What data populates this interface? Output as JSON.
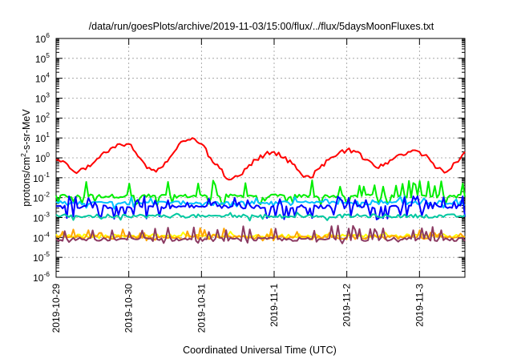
{
  "chart_data": {
    "type": "line",
    "title": "/data/run/goesPlots/archive/2019-11-03/15:00/flux/../flux/5daysMoonFluxes.txt",
    "xlabel": "Coordinated Universal Time (UTC)",
    "ylabel": {
      "before": "protons/cm",
      "sup": "2",
      "after": "-s-sr-MeV"
    },
    "yscale": "log",
    "ylim": [
      1e-06,
      1000000.0
    ],
    "xlim": [
      "2019-10-29T00:00",
      "2019-11-03T15:00"
    ],
    "grid": true,
    "y_ticks": [
      {
        "base": "10",
        "exp": "-6",
        "value": 1e-06
      },
      {
        "base": "10",
        "exp": "-5",
        "value": 1e-05
      },
      {
        "base": "10",
        "exp": "-4",
        "value": 0.0001
      },
      {
        "base": "10",
        "exp": "-3",
        "value": 0.001
      },
      {
        "base": "10",
        "exp": "-2",
        "value": 0.01
      },
      {
        "base": "10",
        "exp": "-1",
        "value": 0.1
      },
      {
        "base": "10",
        "exp": "0",
        "value": 1
      },
      {
        "base": "10",
        "exp": "1",
        "value": 10
      },
      {
        "base": "10",
        "exp": "2",
        "value": 100
      },
      {
        "base": "10",
        "exp": "3",
        "value": 1000
      },
      {
        "base": "10",
        "exp": "4",
        "value": 10000
      },
      {
        "base": "10",
        "exp": "5",
        "value": 100000
      },
      {
        "base": "10",
        "exp": "6",
        "value": 1000000
      }
    ],
    "x_ticks": [
      "2019-10-29",
      "2019-10-30",
      "2019-10-31",
      "2019-11-1",
      "2019-11-2",
      "2019-11-3"
    ],
    "series": [
      {
        "color": "#ff0000",
        "width": 2,
        "points": [
          [
            "2019-10-29T00:00",
            0.8
          ],
          [
            "2019-10-29T03:00",
            0.6
          ],
          [
            "2019-10-29T06:00",
            0.2
          ],
          [
            "2019-10-29T09:00",
            0.3
          ],
          [
            "2019-10-29T12:00",
            0.5
          ],
          [
            "2019-10-29T15:00",
            1.5
          ],
          [
            "2019-10-29T18:00",
            3
          ],
          [
            "2019-10-29T21:00",
            5
          ],
          [
            "2019-10-30T00:00",
            5
          ],
          [
            "2019-10-30T03:00",
            1.2
          ],
          [
            "2019-10-30T06:00",
            0.3
          ],
          [
            "2019-10-30T09:00",
            0.2
          ],
          [
            "2019-10-30T12:00",
            0.6
          ],
          [
            "2019-10-30T15:00",
            2
          ],
          [
            "2019-10-30T18:00",
            7
          ],
          [
            "2019-10-30T21:00",
            10
          ],
          [
            "2019-10-31T00:00",
            5
          ],
          [
            "2019-10-31T03:00",
            1
          ],
          [
            "2019-10-31T06:00",
            0.3
          ],
          [
            "2019-10-31T09:00",
            0.08
          ],
          [
            "2019-10-31T12:00",
            0.12
          ],
          [
            "2019-10-31T15:00",
            0.3
          ],
          [
            "2019-10-31T18:00",
            0.8
          ],
          [
            "2019-10-31T21:00",
            1.5
          ],
          [
            "2019-11-01T00:00",
            2
          ],
          [
            "2019-11-01T03:00",
            1
          ],
          [
            "2019-11-01T06:00",
            0.5
          ],
          [
            "2019-11-01T09:00",
            0.15
          ],
          [
            "2019-11-01T12:00",
            0.1
          ],
          [
            "2019-11-01T15:00",
            0.3
          ],
          [
            "2019-11-01T18:00",
            0.8
          ],
          [
            "2019-11-01T21:00",
            1.5
          ],
          [
            "2019-11-02T00:00",
            2.5
          ],
          [
            "2019-11-02T03:00",
            2
          ],
          [
            "2019-11-02T06:00",
            0.8
          ],
          [
            "2019-11-02T09:00",
            0.4
          ],
          [
            "2019-11-02T12:00",
            0.4
          ],
          [
            "2019-11-02T15:00",
            0.8
          ],
          [
            "2019-11-02T18:00",
            1.5
          ],
          [
            "2019-11-02T21:00",
            2
          ],
          [
            "2019-11-03T00:00",
            2
          ],
          [
            "2019-11-03T03:00",
            1
          ],
          [
            "2019-11-03T06:00",
            0.3
          ],
          [
            "2019-11-03T09:00",
            0.2
          ],
          [
            "2019-11-03T12:00",
            0.6
          ],
          [
            "2019-11-03T15:00",
            2
          ]
        ]
      },
      {
        "color": "#00ee00",
        "width": 2,
        "band": {
          "level": 0.012,
          "low": 0.004,
          "high": 0.08,
          "spike_prob": 0.3
        }
      },
      {
        "color": "#00c0ff",
        "width": 2,
        "band": {
          "level": 0.0055,
          "low": 0.0025,
          "high": 0.012,
          "spike_prob": 0.15
        }
      },
      {
        "color": "#0000ff",
        "width": 2,
        "band": {
          "level": 0.0035,
          "low": 0.0008,
          "high": 0.012,
          "spike_prob": 0.3
        }
      },
      {
        "color": "#00c8a0",
        "width": 2,
        "band": {
          "level": 0.0012,
          "low": 0.0007,
          "high": 0.002,
          "spike_prob": 0.15
        }
      },
      {
        "color": "#ffff00",
        "width": 2,
        "band": {
          "level": 0.00012,
          "low": 8e-05,
          "high": 0.0002,
          "spike_prob": 0.1
        }
      },
      {
        "color": "#ffa500",
        "width": 2,
        "band": {
          "level": 0.0001,
          "low": 7e-05,
          "high": 0.0003,
          "spike_prob": 0.2
        }
      },
      {
        "color": "#8b3a62",
        "width": 2,
        "band": {
          "level": 8e-05,
          "low": 5e-05,
          "high": 0.0004,
          "spike_prob": 0.3
        }
      }
    ]
  }
}
